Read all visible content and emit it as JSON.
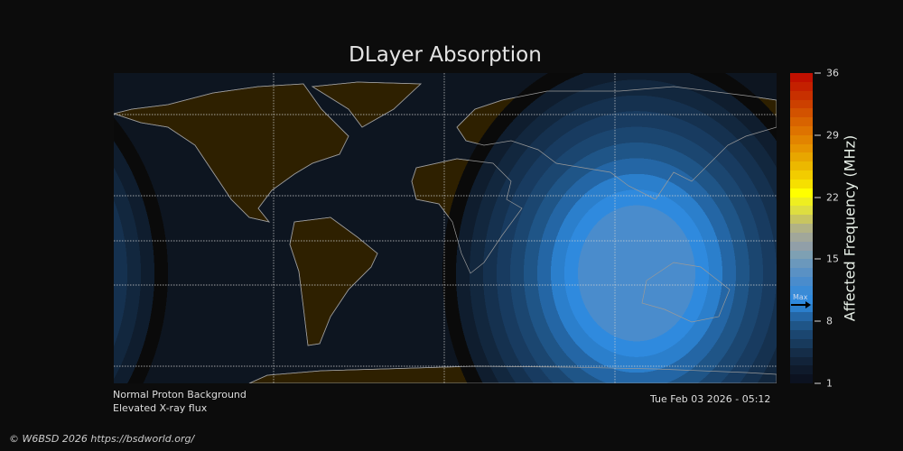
{
  "title": "DLayer Absorption",
  "colorbar": {
    "label": "Affected Frequency (MHz)",
    "ticks": [
      "36",
      "29",
      "22",
      "15",
      "8",
      "1"
    ],
    "tick_values": [
      36,
      29,
      22,
      15,
      8,
      1
    ],
    "range": [
      1,
      36
    ],
    "max_marker_label": "Max",
    "max_marker_value": 10,
    "colors": [
      "#0c1220",
      "#0f1a2b",
      "#122339",
      "#152d48",
      "#183a5c",
      "#1b4670",
      "#1f5587",
      "#2466a5",
      "#2b7fcc",
      "#2f8ade",
      "#3a8bd6",
      "#4a8ccc",
      "#5a91c4",
      "#6b98bc",
      "#7ea0b3",
      "#919fa8",
      "#a1a79a",
      "#b1b285",
      "#c8c560",
      "#dede40",
      "#eeee20",
      "#ffff00",
      "#f6e000",
      "#f2cc00",
      "#ecb800",
      "#e8a600",
      "#e69400",
      "#e28400",
      "#de7300",
      "#d86300",
      "#d25200",
      "#cc4000",
      "#c83000",
      "#c42000",
      "#c01000"
    ]
  },
  "status": {
    "line1": "Normal Proton Background",
    "line2": "Elevated X-ray flux"
  },
  "timestamp": "Tue Feb 03 2026 - 05:12",
  "footer": "© W6BSD 2026 https://bsdworld.org/",
  "map_colors": {
    "ocean": "#0d1520",
    "land": "#2e2000",
    "coast": "#9a9a9a",
    "grid": "#cfcfcf"
  }
}
